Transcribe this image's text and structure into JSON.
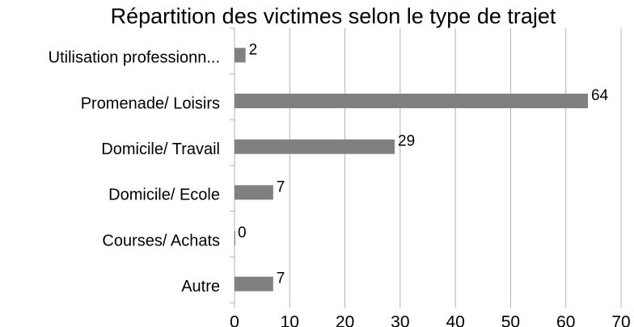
{
  "chart_data": {
    "type": "hbar",
    "title": "Répartition des victimes selon le type de trajet",
    "categories": [
      "Utilisation professionn...",
      "Promenade/ Loisirs",
      "Domicile/ Travail",
      "Domicile/ Ecole",
      "Courses/ Achats",
      "Autre"
    ],
    "values": [
      2,
      64,
      29,
      7,
      0,
      7
    ],
    "color": "#808080",
    "xlim": [
      0,
      70
    ],
    "xticks": [
      0,
      10,
      20,
      30,
      40,
      50,
      60,
      70
    ],
    "grid": true
  }
}
